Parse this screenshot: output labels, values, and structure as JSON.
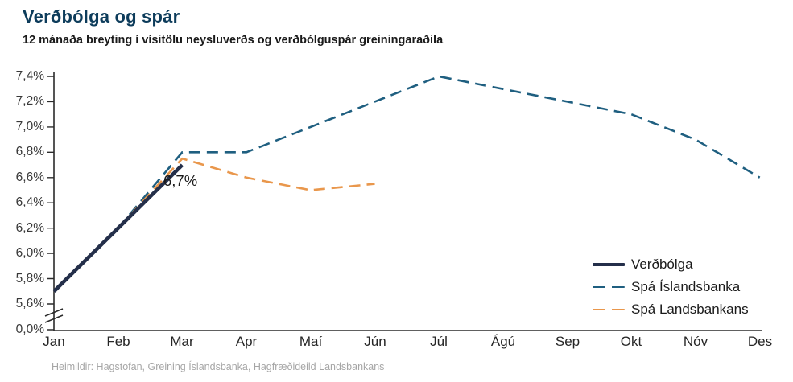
{
  "header": {
    "title": "Verðbólga og spár",
    "subtitle": "12 mánaða breyting í vísitölu neysluverðs og verðbólguspár greiningaraðila"
  },
  "footer": {
    "source": "Heimildir: Hagstofan, Greining Íslandsbanka, Hagfræðideild Landsbankans"
  },
  "colors": {
    "title": "#0d3c5b",
    "axis": "#2b2b2b",
    "verdbolga_line": "#242f4a",
    "spa_islandsbanka_line": "#1f5f80",
    "spa_landsbankans_line": "#e9974c",
    "source_text": "#a6a6a6"
  },
  "chart_data": {
    "type": "line",
    "title": "Verðbólga og spár",
    "subtitle": "12 mánaða breyting í vísitölu neysluverðs og verðbólguspár greiningaraðila",
    "unit": "%",
    "grid": false,
    "legend_position": "bottom-right",
    "x_categories": [
      "Jan",
      "Feb",
      "Mar",
      "Apr",
      "Maí",
      "Jún",
      "Júl",
      "Ágú",
      "Sep",
      "Okt",
      "Nóv",
      "Des"
    ],
    "y_tick_labels": [
      "7,4%",
      "7,2%",
      "7,0%",
      "6,8%",
      "6,6%",
      "6,4%",
      "6,2%",
      "6,0%",
      "5,8%",
      "5,6%",
      "0,0%"
    ],
    "y_tick_values": [
      7.4,
      7.2,
      7.0,
      6.8,
      6.6,
      6.4,
      6.2,
      6.0,
      5.8,
      5.6,
      0.0
    ],
    "ylim_data": [
      5.6,
      7.4
    ],
    "y_axis_break": true,
    "series": [
      {
        "name": "Verðbólga",
        "style": "solid",
        "color": "#242f4a",
        "x": [
          "Jan",
          "Feb",
          "Mar"
        ],
        "values": [
          5.7,
          6.2,
          6.7
        ]
      },
      {
        "name": "Spá Íslandsbanka",
        "style": "dashed",
        "color": "#1f5f80",
        "x": [
          "Feb",
          "Mar",
          "Apr",
          "Maí",
          "Jún",
          "Júl",
          "Ágú",
          "Sep",
          "Okt",
          "Nóv",
          "Des"
        ],
        "values": [
          6.2,
          6.8,
          6.8,
          7.0,
          7.2,
          7.4,
          7.3,
          7.2,
          7.1,
          6.9,
          6.6
        ]
      },
      {
        "name": "Spá Landsbankans",
        "style": "dashed",
        "color": "#e9974c",
        "x": [
          "Feb",
          "Mar",
          "Apr",
          "Maí",
          "Jún"
        ],
        "values": [
          6.2,
          6.75,
          6.6,
          6.5,
          6.55
        ]
      }
    ],
    "annotations": [
      {
        "text": "6,7%",
        "target_series": "Verðbólga",
        "target_x": "Mar"
      }
    ]
  }
}
